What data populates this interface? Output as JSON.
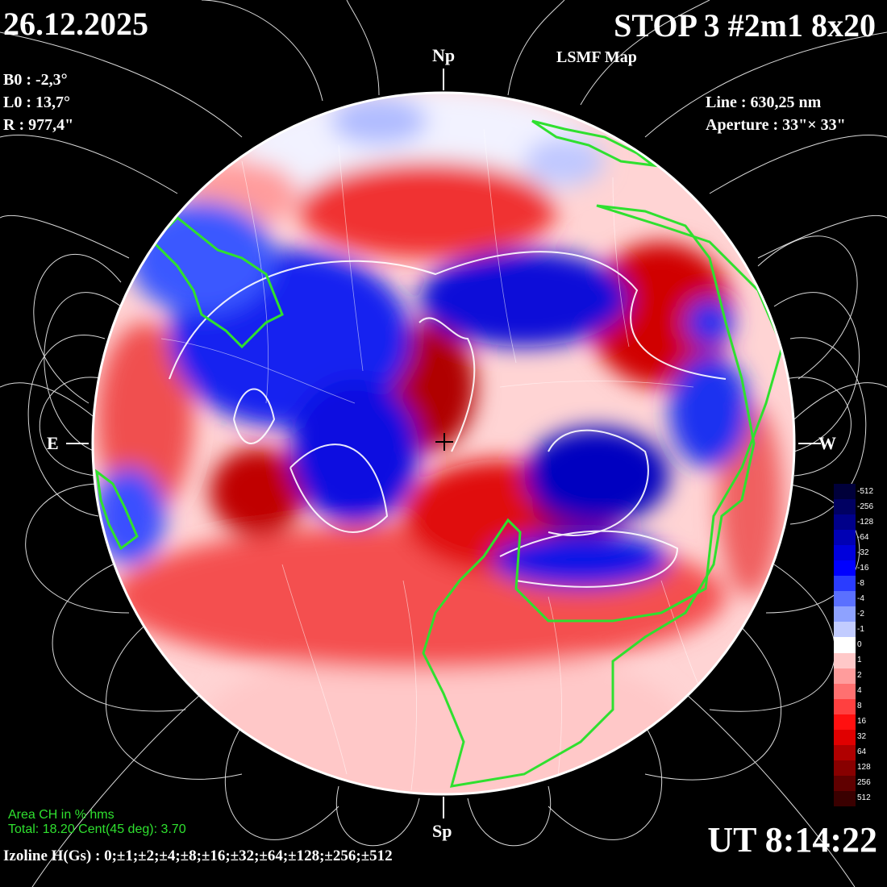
{
  "header": {
    "date": "26.12.2025",
    "title": "STOP 3 #2m1 8x20",
    "subtitle": "LSMF  Map"
  },
  "params_left": [
    "B0 : -2,3°",
    "L0 : 13,7°",
    "R  : 977,4\""
  ],
  "params_right": [
    "Line :  630,25 nm",
    "Aperture : 33\"× 33\""
  ],
  "directions": {
    "north": "Np",
    "south": "Sp",
    "east": "E",
    "west": "W"
  },
  "time": "UT 8:14:22",
  "area": {
    "heading": "Area CH in % hms",
    "summary": "Total: 18.20    Cent(45 deg): 3.70"
  },
  "izoline": "Izoline H(Gs) : 0;±1;±2;±4;±8;±16;±32;±64;±128;±256;±512",
  "colorscale": {
    "labels": [
      "-512",
      "-256",
      "-128",
      "-64",
      "-32",
      "-16",
      "-8",
      "-4",
      "-2",
      "-1",
      "0",
      "1",
      "2",
      "4",
      "8",
      "16",
      "32",
      "64",
      "128",
      "256",
      "512"
    ],
    "colors": [
      "#00003a",
      "#000062",
      "#00008a",
      "#0000b4",
      "#0000dc",
      "#0000ff",
      "#2a3cff",
      "#5a70ff",
      "#8ea2ff",
      "#c2ccff",
      "#ffffff",
      "#ffc8c8",
      "#ff9c9c",
      "#ff7070",
      "#ff4040",
      "#ff1010",
      "#e00000",
      "#b00000",
      "#880000",
      "#600000",
      "#3a0000"
    ]
  },
  "colors": {
    "positive": "#ff2020",
    "negative": "#0a14e6",
    "coronal_hole_outline": "#2fe02f"
  }
}
